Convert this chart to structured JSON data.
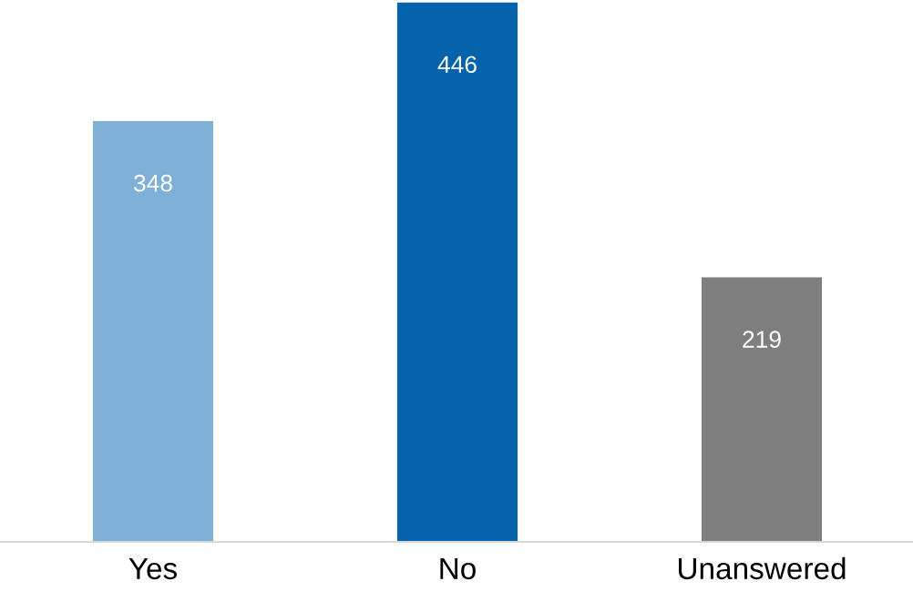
{
  "chart_data": {
    "type": "bar",
    "categories": [
      "Yes",
      "No",
      "Unanswered"
    ],
    "values": [
      348,
      446,
      219
    ],
    "colors": [
      "#7fb0d8",
      "#0563ac",
      "#7f7f7f"
    ],
    "data_labels": true,
    "grid": false,
    "legend": false
  }
}
